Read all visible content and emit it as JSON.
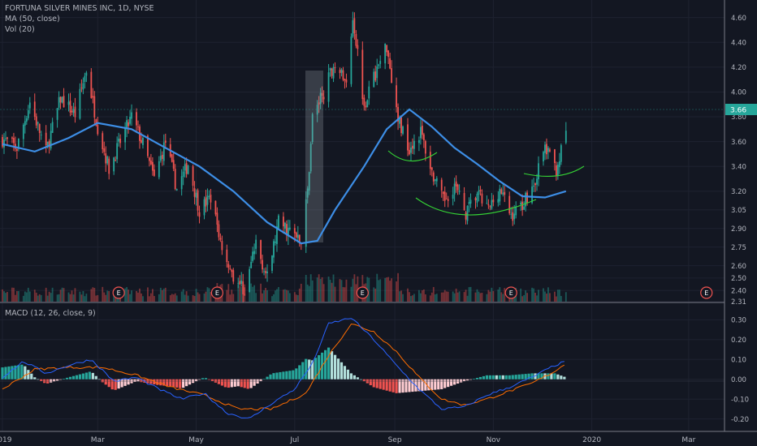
{
  "header": {
    "symbol_line": "FORTUNA SILVER MINES INC, 1D, NYSE",
    "ma_line": "MA (50, close)",
    "vol_line": "Vol (20)",
    "macd_line": "MACD (12, 26, close, 9)"
  },
  "colors": {
    "background": "#131722",
    "up": "#26a69a",
    "down": "#ef5350",
    "ma": "#3d8ee6",
    "macd": "#2962ff",
    "signal": "#ff6d00",
    "annotation": "#35d435",
    "text": "#b2b5be",
    "last_price": "#26a69a"
  },
  "chart_data": [
    {
      "type": "candlestick",
      "title": "FORTUNA SILVER MINES INC, 1D, NYSE",
      "ylim": [
        2.31,
        4.65
      ],
      "y_ticks": [
        "4.60",
        "4.40",
        "4.20",
        "4.00",
        "3.80",
        "3.60",
        "3.40",
        "3.20",
        "3.05",
        "2.90",
        "2.75",
        "2.60",
        "2.50",
        "2.40",
        "2.31"
      ],
      "x_ticks": [
        "2019",
        "Mar",
        "May",
        "Jul",
        "Sep",
        "Nov",
        "2020",
        "Mar"
      ],
      "last_price": "3.66",
      "earnings_markers": [
        "E",
        "E",
        "E",
        "E",
        "E"
      ],
      "price_path": [
        [
          "2019-01-01",
          3.62
        ],
        [
          "2019-01-10",
          3.55
        ],
        [
          "2019-01-18",
          3.92
        ],
        [
          "2019-01-28",
          3.52
        ],
        [
          "2019-02-06",
          3.95
        ],
        [
          "2019-02-15",
          3.82
        ],
        [
          "2019-02-22",
          4.18
        ],
        [
          "2019-03-01",
          3.72
        ],
        [
          "2019-03-08",
          3.38
        ],
        [
          "2019-03-15",
          3.6
        ],
        [
          "2019-03-22",
          3.8
        ],
        [
          "2019-03-29",
          3.58
        ],
        [
          "2019-04-05",
          3.3
        ],
        [
          "2019-04-12",
          3.6
        ],
        [
          "2019-04-19",
          3.22
        ],
        [
          "2019-04-26",
          3.42
        ],
        [
          "2019-05-03",
          3.05
        ],
        [
          "2019-05-10",
          3.15
        ],
        [
          "2019-05-17",
          2.75
        ],
        [
          "2019-05-24",
          2.52
        ],
        [
          "2019-05-31",
          2.4
        ],
        [
          "2019-06-07",
          2.78
        ],
        [
          "2019-06-14",
          2.5
        ],
        [
          "2019-06-21",
          2.95
        ],
        [
          "2019-06-28",
          2.88
        ],
        [
          "2019-07-05",
          2.78
        ],
        [
          "2019-07-09",
          3.2
        ],
        [
          "2019-07-12",
          3.8
        ],
        [
          "2019-07-19",
          4.0
        ],
        [
          "2019-07-26",
          4.25
        ],
        [
          "2019-08-02",
          4.05
        ],
        [
          "2019-08-06",
          4.62
        ],
        [
          "2019-08-13",
          3.9
        ],
        [
          "2019-08-20",
          4.15
        ],
        [
          "2019-08-27",
          4.38
        ],
        [
          "2019-09-03",
          3.78
        ],
        [
          "2019-09-10",
          3.55
        ],
        [
          "2019-09-17",
          3.68
        ],
        [
          "2019-09-24",
          3.35
        ],
        [
          "2019-10-01",
          3.12
        ],
        [
          "2019-10-08",
          3.25
        ],
        [
          "2019-10-15",
          3.02
        ],
        [
          "2019-10-22",
          3.18
        ],
        [
          "2019-10-29",
          3.05
        ],
        [
          "2019-11-05",
          3.22
        ],
        [
          "2019-11-12",
          3.0
        ],
        [
          "2019-11-19",
          3.1
        ],
        [
          "2019-11-26",
          3.25
        ],
        [
          "2019-12-03",
          3.55
        ],
        [
          "2019-12-10",
          3.38
        ],
        [
          "2019-12-16",
          3.66
        ]
      ],
      "ma50_path": [
        [
          "2019-01-01",
          3.58
        ],
        [
          "2019-01-21",
          3.52
        ],
        [
          "2019-02-11",
          3.63
        ],
        [
          "2019-03-01",
          3.75
        ],
        [
          "2019-03-22",
          3.7
        ],
        [
          "2019-04-12",
          3.55
        ],
        [
          "2019-05-03",
          3.4
        ],
        [
          "2019-05-24",
          3.2
        ],
        [
          "2019-06-14",
          2.95
        ],
        [
          "2019-07-05",
          2.78
        ],
        [
          "2019-07-15",
          2.8
        ],
        [
          "2019-07-26",
          3.05
        ],
        [
          "2019-08-13",
          3.4
        ],
        [
          "2019-08-27",
          3.7
        ],
        [
          "2019-09-10",
          3.86
        ],
        [
          "2019-09-24",
          3.72
        ],
        [
          "2019-10-08",
          3.55
        ],
        [
          "2019-10-22",
          3.42
        ],
        [
          "2019-11-05",
          3.28
        ],
        [
          "2019-11-19",
          3.16
        ],
        [
          "2019-12-03",
          3.15
        ],
        [
          "2019-12-16",
          3.2
        ]
      ],
      "volume_panel_range": [
        2.31,
        2.62
      ]
    },
    {
      "type": "macd",
      "title": "MACD (12, 26, close, 9)",
      "ylim": [
        -0.23,
        0.33
      ],
      "y_ticks": [
        "0.30",
        "0.20",
        "0.10",
        "0.00",
        "-0.10",
        "-0.20"
      ],
      "macd_path": [
        [
          "2019-01-01",
          0.01
        ],
        [
          "2019-01-14",
          0.09
        ],
        [
          "2019-01-28",
          0.03
        ],
        [
          "2019-02-11",
          0.07
        ],
        [
          "2019-02-25",
          0.1
        ],
        [
          "2019-03-11",
          -0.01
        ],
        [
          "2019-03-25",
          0.01
        ],
        [
          "2019-04-08",
          -0.05
        ],
        [
          "2019-04-22",
          -0.1
        ],
        [
          "2019-05-06",
          -0.07
        ],
        [
          "2019-05-20",
          -0.17
        ],
        [
          "2019-06-03",
          -0.2
        ],
        [
          "2019-06-17",
          -0.12
        ],
        [
          "2019-07-01",
          -0.05
        ],
        [
          "2019-07-12",
          0.08
        ],
        [
          "2019-07-22",
          0.28
        ],
        [
          "2019-08-05",
          0.31
        ],
        [
          "2019-08-19",
          0.2
        ],
        [
          "2019-09-02",
          0.07
        ],
        [
          "2019-09-16",
          -0.05
        ],
        [
          "2019-09-30",
          -0.15
        ],
        [
          "2019-10-14",
          -0.14
        ],
        [
          "2019-10-28",
          -0.08
        ],
        [
          "2019-11-11",
          -0.04
        ],
        [
          "2019-11-25",
          0.01
        ],
        [
          "2019-12-09",
          0.07
        ],
        [
          "2019-12-16",
          0.09
        ]
      ],
      "signal_path": [
        [
          "2019-01-01",
          -0.05
        ],
        [
          "2019-01-21",
          0.05
        ],
        [
          "2019-02-11",
          0.06
        ],
        [
          "2019-03-04",
          0.06
        ],
        [
          "2019-03-25",
          0.02
        ],
        [
          "2019-04-15",
          -0.04
        ],
        [
          "2019-05-06",
          -0.08
        ],
        [
          "2019-05-27",
          -0.15
        ],
        [
          "2019-06-17",
          -0.15
        ],
        [
          "2019-07-08",
          -0.07
        ],
        [
          "2019-07-22",
          0.12
        ],
        [
          "2019-08-05",
          0.28
        ],
        [
          "2019-08-19",
          0.24
        ],
        [
          "2019-09-02",
          0.14
        ],
        [
          "2019-09-16",
          0.01
        ],
        [
          "2019-09-30",
          -0.1
        ],
        [
          "2019-10-14",
          -0.13
        ],
        [
          "2019-10-28",
          -0.1
        ],
        [
          "2019-11-11",
          -0.06
        ],
        [
          "2019-11-25",
          -0.02
        ],
        [
          "2019-12-09",
          0.04
        ],
        [
          "2019-12-16",
          0.08
        ]
      ]
    }
  ]
}
